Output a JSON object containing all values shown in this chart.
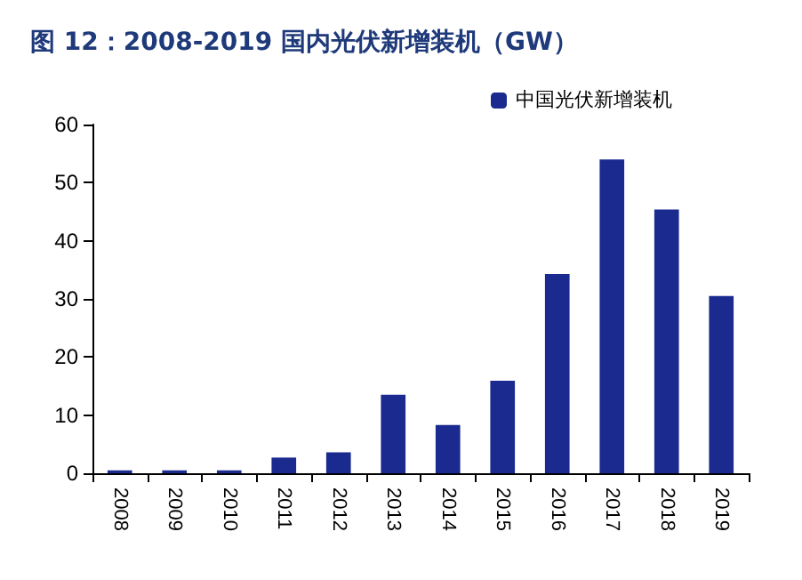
{
  "chart_data": {
    "type": "bar",
    "title": "图 12：2008-2019 国内光伏新增装机（GW）",
    "categories": [
      "2008",
      "2009",
      "2010",
      "2011",
      "2012",
      "2013",
      "2014",
      "2015",
      "2016",
      "2017",
      "2018",
      "2019"
    ],
    "series": [
      {
        "name": "中国光伏新增装机",
        "color": "#1a2a8f",
        "values": [
          0.5,
          0.5,
          0.5,
          2.7,
          3.6,
          13.5,
          8.3,
          15.9,
          34.3,
          54.0,
          45.4,
          30.5
        ]
      }
    ],
    "ylim": [
      0,
      60
    ],
    "yticks": [
      0,
      10,
      20,
      30,
      40,
      50,
      60
    ],
    "grid": false,
    "legend": "top right"
  }
}
